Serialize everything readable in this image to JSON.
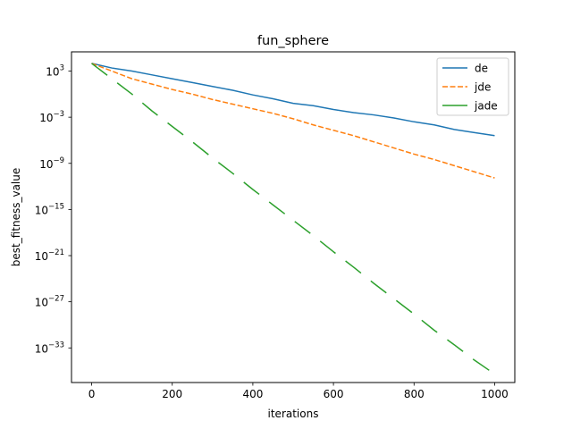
{
  "chart_data": {
    "type": "line",
    "title": "fun_sphere",
    "xlabel": "iterations",
    "ylabel": "best_fitness_value",
    "yscale": "log",
    "xlim": [
      -50,
      1050
    ],
    "ylim_exponent": [
      -37.5,
      5.5
    ],
    "x_ticks": [
      0,
      200,
      400,
      600,
      800,
      1000
    ],
    "y_tick_exponents": [
      3,
      -3,
      -9,
      -15,
      -21,
      -27,
      -33
    ],
    "y_tick_base": "10",
    "legend_position": "top-right",
    "series": [
      {
        "name": "de",
        "color": "#1f77b4",
        "style": "solid",
        "x": [
          0,
          50,
          100,
          150,
          200,
          250,
          300,
          350,
          400,
          450,
          500,
          550,
          600,
          650,
          700,
          750,
          800,
          850,
          900,
          950,
          1000
        ],
        "log10_y": [
          4.0,
          3.4,
          3.0,
          2.5,
          2.0,
          1.5,
          1.0,
          0.5,
          -0.1,
          -0.6,
          -1.2,
          -1.5,
          -2.0,
          -2.4,
          -2.7,
          -3.1,
          -3.6,
          -4.0,
          -4.6,
          -5.0,
          -5.4
        ]
      },
      {
        "name": "jde",
        "color": "#ff7f0e",
        "style": "dashed",
        "x": [
          0,
          50,
          100,
          150,
          200,
          250,
          300,
          350,
          400,
          450,
          500,
          550,
          600,
          650,
          700,
          750,
          800,
          850,
          900,
          950,
          1000
        ],
        "log10_y": [
          4.0,
          3.0,
          2.0,
          1.3,
          0.6,
          0.0,
          -0.7,
          -1.3,
          -1.9,
          -2.5,
          -3.2,
          -4.0,
          -4.7,
          -5.4,
          -6.2,
          -7.0,
          -7.8,
          -8.5,
          -9.3,
          -10.1,
          -10.9
        ]
      },
      {
        "name": "jade",
        "color": "#2ca02c",
        "style": "dashed-long",
        "x": [
          0,
          50,
          100,
          150,
          200,
          250,
          300,
          350,
          400,
          450,
          500,
          550,
          600,
          650,
          700,
          750,
          800,
          850,
          900,
          950,
          1000
        ],
        "log10_y": [
          4.0,
          2.0,
          0.0,
          -2.2,
          -4.2,
          -6.2,
          -8.3,
          -10.3,
          -12.4,
          -14.4,
          -16.4,
          -18.4,
          -20.5,
          -22.5,
          -24.6,
          -26.6,
          -28.6,
          -30.7,
          -32.6,
          -34.6,
          -36.4
        ]
      }
    ]
  }
}
